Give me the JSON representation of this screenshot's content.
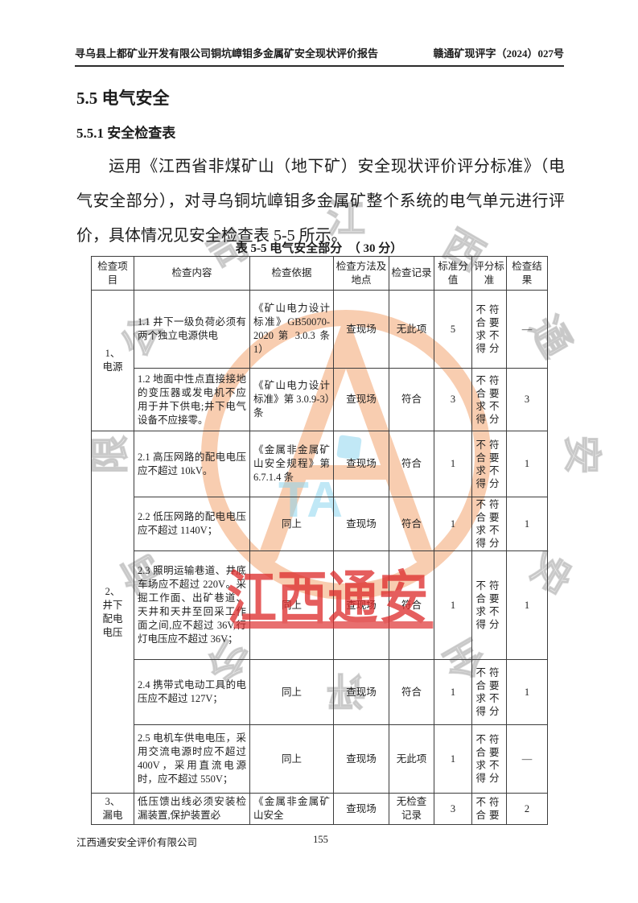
{
  "header": {
    "left": "寻乌县上都矿业开发有限公司铜坑嶂钼多金属矿安全现状评价报告",
    "right": "赣通矿现评字（2024）027号"
  },
  "section": {
    "h1": "5.5 电气安全",
    "h2": "5.5.1 安全检查表",
    "paragraph": "运用《江西省非煤矿山（地下矿）安全现状评价评分标准》（电气安全部分），对寻乌铜坑嶂钼多金属矿整个系统的电气单元进行评价，具体情况见安全检查表 5-5 所示。"
  },
  "table": {
    "caption": "表 5-5 电气安全部分　（ 30 分）",
    "headers": [
      "检查项目",
      "检查内容",
      "检查依据",
      "检查方法及地点",
      "检查记录",
      "标准分值",
      "评分标准",
      "检查结果"
    ],
    "groups": [
      "1、\n电源",
      "2、\n井下\n配电\n电压",
      "3、\n漏电"
    ],
    "rows": [
      {
        "content": "1.1 井下一级负荷必须有两个独立电源供电",
        "basis": "《矿山电力设计标准》GB50070-2020 第 3.0.3 条 1）",
        "method": "查现场",
        "record": "无此项",
        "score": "5",
        "criteria": "不符合要求不得分",
        "result": "—"
      },
      {
        "content": "1.2 地面中性点直接接地的变压器或发电机不应用于井下供电;井下电气设备不应接零。",
        "basis": "《矿山电力设计标准》第 3.0.9-3）条",
        "method": "查现场",
        "record": "符合",
        "score": "3",
        "criteria": "不符合要求不得分",
        "result": "3"
      },
      {
        "content": "2.1 高压网路的配电电压应不超过 10kV。",
        "basis": "《金属非金属矿山安全规程》第 6.7.1.4 条",
        "method": "查现场",
        "record": "符合",
        "score": "1",
        "criteria": "不符合要求不得分",
        "result": "1"
      },
      {
        "content": "2.2 低压网路的配电电压应不超过 1140V；",
        "basis": "同上",
        "method": "查现场",
        "record": "符合",
        "score": "1",
        "criteria": "不符合要求不得分",
        "result": "1"
      },
      {
        "content": "2.3 照明运输巷道、井底车场应不超过 220V。采掘工作面、出矿巷道、天井和天井至回采工作面之间,应不超过 36V,行灯电压应不超过 36V；",
        "basis": "同上",
        "method": "查现场",
        "record": "符合",
        "score": "1",
        "criteria": "不符合要求不得分",
        "result": "1"
      },
      {
        "content": "2.4 携带式电动工具的电压应不超过 127V；",
        "basis": "同上",
        "method": "查现场",
        "record": "符合",
        "score": "1",
        "criteria": "不符合要求不得分",
        "result": "1"
      },
      {
        "content": "2.5 电机车供电电压，采用交流电源时应不超过 400V，采用直流电源时，应不超过 550V；",
        "basis": "同上",
        "method": "查现场",
        "record": "无此项",
        "score": "1",
        "criteria": "不符合要求不得分",
        "result": "—"
      },
      {
        "content": "低压馈出线必须安装检漏装置,保护装置必",
        "basis": "《金属非金属矿山安全",
        "method": "查现场",
        "record": "无检查记录",
        "score": "3",
        "criteria": "不符合要",
        "result": "2"
      }
    ]
  },
  "footer": {
    "company": "江西通安安全评价有限公司",
    "page_number": "155"
  },
  "watermark": {
    "red_text": "江西通安",
    "blue_text": "TA",
    "ring_text": "江西通安安全评价有限公司",
    "colors": {
      "orange": "#f29d64",
      "blue": "#8ed6ef",
      "red": "#dd2c2c",
      "gray": "#aaaaaa"
    }
  }
}
